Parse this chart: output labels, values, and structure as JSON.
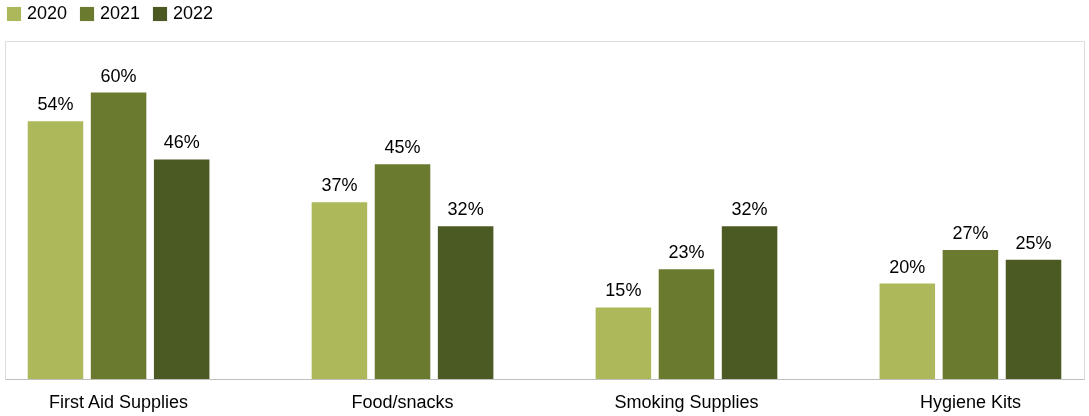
{
  "chart_data": {
    "type": "bar",
    "categories": [
      "First Aid Supplies",
      "Food/snacks",
      "Smoking Supplies",
      "Hygiene Kits"
    ],
    "series": [
      {
        "name": "2020",
        "color": "#adb85a",
        "values": [
          54,
          37,
          15,
          20
        ],
        "value_labels": [
          "54%",
          "37%",
          "15%",
          "20%"
        ]
      },
      {
        "name": "2021",
        "color": "#6a7a2e",
        "values": [
          60,
          45,
          23,
          27
        ],
        "value_labels": [
          "60%",
          "45%",
          "23%",
          "27%"
        ]
      },
      {
        "name": "2022",
        "color": "#4b5a22",
        "values": [
          46,
          32,
          32,
          25
        ],
        "value_labels": [
          "46%",
          "32%",
          "32%",
          "25%"
        ]
      }
    ],
    "legend": "top",
    "grid": false
  }
}
